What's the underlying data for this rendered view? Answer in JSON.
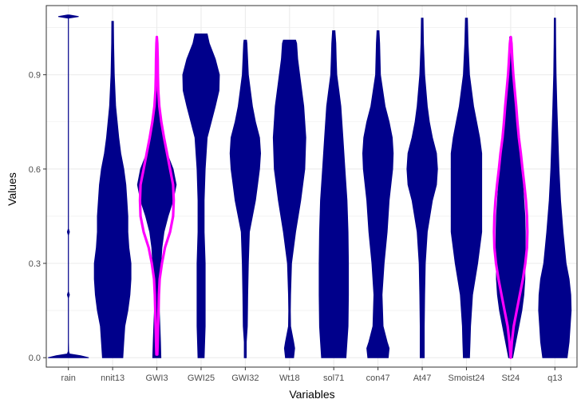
{
  "chart_data": {
    "type": "violin",
    "title": "",
    "xlabel": "Variables",
    "ylabel": "Values",
    "ylim": [
      -0.03,
      1.12
    ],
    "yticks": [
      0.0,
      0.3,
      0.6,
      0.9
    ],
    "ytick_labels": [
      "0.0",
      "0.3",
      "0.6",
      "0.9"
    ],
    "grid": true,
    "legend": "none",
    "fill_color": "#00008b",
    "highlight_color": "#ff00ff",
    "panel_border_color": "#333333",
    "grid_color": "#ebebeb",
    "categories": [
      "rain",
      "nnit13",
      "GWI3",
      "GWI25",
      "GWI32",
      "Wt18",
      "sol71",
      "con47",
      "At47",
      "Smoist24",
      "St24",
      "q13"
    ],
    "violins": [
      {
        "category": "rain",
        "profile": [
          [
            0.0,
            1.0
          ],
          [
            0.006,
            0.6
          ],
          [
            0.012,
            0.05
          ],
          [
            0.02,
            0.01
          ],
          [
            0.05,
            0.005
          ],
          [
            0.19,
            0.005
          ],
          [
            0.2,
            0.05
          ],
          [
            0.21,
            0.005
          ],
          [
            0.39,
            0.005
          ],
          [
            0.4,
            0.05
          ],
          [
            0.41,
            0.005
          ],
          [
            1.08,
            0.005
          ],
          [
            1.085,
            0.5
          ],
          [
            1.09,
            0.05
          ]
        ]
      },
      {
        "category": "nnit13",
        "profile": [
          [
            0.0,
            0.5
          ],
          [
            0.05,
            0.55
          ],
          [
            0.1,
            0.6
          ],
          [
            0.15,
            0.75
          ],
          [
            0.2,
            0.85
          ],
          [
            0.25,
            0.9
          ],
          [
            0.3,
            0.9
          ],
          [
            0.35,
            0.8
          ],
          [
            0.4,
            0.75
          ],
          [
            0.45,
            0.75
          ],
          [
            0.5,
            0.7
          ],
          [
            0.55,
            0.65
          ],
          [
            0.6,
            0.55
          ],
          [
            0.65,
            0.4
          ],
          [
            0.7,
            0.3
          ],
          [
            0.8,
            0.15
          ],
          [
            0.9,
            0.08
          ],
          [
            1.0,
            0.05
          ],
          [
            1.07,
            0.04
          ]
        ]
      },
      {
        "category": "GWI3",
        "profile": [
          [
            0.0,
            0.2
          ],
          [
            0.05,
            0.18
          ],
          [
            0.1,
            0.15
          ],
          [
            0.15,
            0.12
          ],
          [
            0.2,
            0.12
          ],
          [
            0.25,
            0.15
          ],
          [
            0.3,
            0.2
          ],
          [
            0.35,
            0.25
          ],
          [
            0.4,
            0.35
          ],
          [
            0.45,
            0.55
          ],
          [
            0.5,
            0.8
          ],
          [
            0.55,
            0.95
          ],
          [
            0.6,
            0.8
          ],
          [
            0.65,
            0.5
          ],
          [
            0.7,
            0.3
          ],
          [
            0.75,
            0.15
          ],
          [
            0.8,
            0.08
          ],
          [
            0.9,
            0.05
          ],
          [
            1.0,
            0.04
          ],
          [
            1.02,
            0.03
          ]
        ]
      },
      {
        "category": "GWI25",
        "profile": [
          [
            0.0,
            0.15
          ],
          [
            0.1,
            0.2
          ],
          [
            0.2,
            0.2
          ],
          [
            0.3,
            0.2
          ],
          [
            0.4,
            0.15
          ],
          [
            0.5,
            0.15
          ],
          [
            0.6,
            0.2
          ],
          [
            0.7,
            0.3
          ],
          [
            0.75,
            0.5
          ],
          [
            0.8,
            0.7
          ],
          [
            0.85,
            0.88
          ],
          [
            0.9,
            0.9
          ],
          [
            0.95,
            0.7
          ],
          [
            1.0,
            0.4
          ],
          [
            1.03,
            0.3
          ]
        ]
      },
      {
        "category": "GWI32",
        "profile": [
          [
            0.0,
            0.05
          ],
          [
            0.05,
            0.05
          ],
          [
            0.1,
            0.1
          ],
          [
            0.2,
            0.12
          ],
          [
            0.3,
            0.15
          ],
          [
            0.4,
            0.2
          ],
          [
            0.5,
            0.5
          ],
          [
            0.55,
            0.6
          ],
          [
            0.6,
            0.7
          ],
          [
            0.65,
            0.75
          ],
          [
            0.7,
            0.7
          ],
          [
            0.75,
            0.5
          ],
          [
            0.8,
            0.35
          ],
          [
            0.9,
            0.15
          ],
          [
            1.0,
            0.08
          ],
          [
            1.01,
            0.06
          ]
        ]
      },
      {
        "category": "Wt18",
        "profile": [
          [
            0.0,
            0.2
          ],
          [
            0.03,
            0.25
          ],
          [
            0.05,
            0.2
          ],
          [
            0.1,
            0.05
          ],
          [
            0.15,
            0.04
          ],
          [
            0.2,
            0.05
          ],
          [
            0.3,
            0.1
          ],
          [
            0.4,
            0.3
          ],
          [
            0.5,
            0.55
          ],
          [
            0.6,
            0.75
          ],
          [
            0.7,
            0.8
          ],
          [
            0.8,
            0.7
          ],
          [
            0.9,
            0.5
          ],
          [
            0.95,
            0.4
          ],
          [
            1.0,
            0.35
          ],
          [
            1.01,
            0.3
          ]
        ]
      },
      {
        "category": "sol71",
        "profile": [
          [
            0.0,
            0.6
          ],
          [
            0.05,
            0.65
          ],
          [
            0.1,
            0.7
          ],
          [
            0.2,
            0.72
          ],
          [
            0.3,
            0.72
          ],
          [
            0.4,
            0.7
          ],
          [
            0.5,
            0.65
          ],
          [
            0.6,
            0.55
          ],
          [
            0.7,
            0.45
          ],
          [
            0.8,
            0.35
          ],
          [
            0.85,
            0.25
          ],
          [
            0.9,
            0.15
          ],
          [
            0.95,
            0.12
          ],
          [
            1.0,
            0.1
          ],
          [
            1.04,
            0.06
          ]
        ]
      },
      {
        "category": "con47",
        "profile": [
          [
            0.0,
            0.5
          ],
          [
            0.03,
            0.55
          ],
          [
            0.05,
            0.45
          ],
          [
            0.1,
            0.25
          ],
          [
            0.2,
            0.2
          ],
          [
            0.3,
            0.3
          ],
          [
            0.4,
            0.45
          ],
          [
            0.5,
            0.55
          ],
          [
            0.6,
            0.72
          ],
          [
            0.65,
            0.75
          ],
          [
            0.7,
            0.7
          ],
          [
            0.75,
            0.55
          ],
          [
            0.8,
            0.35
          ],
          [
            0.9,
            0.12
          ],
          [
            1.0,
            0.08
          ],
          [
            1.04,
            0.05
          ]
        ]
      },
      {
        "category": "At47",
        "profile": [
          [
            0.0,
            0.1
          ],
          [
            0.05,
            0.1
          ],
          [
            0.1,
            0.1
          ],
          [
            0.2,
            0.12
          ],
          [
            0.3,
            0.15
          ],
          [
            0.4,
            0.25
          ],
          [
            0.5,
            0.5
          ],
          [
            0.55,
            0.7
          ],
          [
            0.6,
            0.75
          ],
          [
            0.65,
            0.7
          ],
          [
            0.7,
            0.5
          ],
          [
            0.75,
            0.35
          ],
          [
            0.8,
            0.25
          ],
          [
            0.9,
            0.12
          ],
          [
            1.0,
            0.06
          ],
          [
            1.08,
            0.04
          ]
        ]
      },
      {
        "category": "Smoist24",
        "profile": [
          [
            0.0,
            0.15
          ],
          [
            0.05,
            0.18
          ],
          [
            0.1,
            0.2
          ],
          [
            0.2,
            0.3
          ],
          [
            0.3,
            0.55
          ],
          [
            0.4,
            0.75
          ],
          [
            0.5,
            0.75
          ],
          [
            0.6,
            0.75
          ],
          [
            0.65,
            0.75
          ],
          [
            0.7,
            0.65
          ],
          [
            0.75,
            0.5
          ],
          [
            0.8,
            0.35
          ],
          [
            0.9,
            0.15
          ],
          [
            1.0,
            0.08
          ],
          [
            1.08,
            0.05
          ]
        ]
      },
      {
        "category": "St24",
        "profile": [
          [
            0.0,
            0.1
          ],
          [
            0.05,
            0.25
          ],
          [
            0.1,
            0.4
          ],
          [
            0.15,
            0.55
          ],
          [
            0.2,
            0.65
          ],
          [
            0.25,
            0.7
          ],
          [
            0.3,
            0.7
          ],
          [
            0.35,
            0.72
          ],
          [
            0.4,
            0.72
          ],
          [
            0.45,
            0.7
          ],
          [
            0.5,
            0.65
          ],
          [
            0.55,
            0.6
          ],
          [
            0.6,
            0.55
          ],
          [
            0.65,
            0.45
          ],
          [
            0.7,
            0.35
          ],
          [
            0.8,
            0.25
          ],
          [
            0.9,
            0.12
          ],
          [
            1.0,
            0.06
          ],
          [
            1.02,
            0.05
          ]
        ]
      },
      {
        "category": "q13",
        "profile": [
          [
            0.0,
            0.6
          ],
          [
            0.05,
            0.7
          ],
          [
            0.1,
            0.75
          ],
          [
            0.15,
            0.8
          ],
          [
            0.2,
            0.78
          ],
          [
            0.25,
            0.7
          ],
          [
            0.3,
            0.55
          ],
          [
            0.4,
            0.4
          ],
          [
            0.5,
            0.28
          ],
          [
            0.6,
            0.2
          ],
          [
            0.7,
            0.15
          ],
          [
            0.8,
            0.1
          ],
          [
            0.9,
            0.06
          ],
          [
            1.0,
            0.04
          ],
          [
            1.08,
            0.03
          ]
        ]
      }
    ],
    "highlight_outlines": [
      {
        "category": "GWI3",
        "profile": [
          [
            0.01,
            0.02
          ],
          [
            0.05,
            0.04
          ],
          [
            0.1,
            0.06
          ],
          [
            0.15,
            0.08
          ],
          [
            0.2,
            0.1
          ],
          [
            0.25,
            0.14
          ],
          [
            0.3,
            0.25
          ],
          [
            0.35,
            0.4
          ],
          [
            0.4,
            0.65
          ],
          [
            0.45,
            0.8
          ],
          [
            0.5,
            0.83
          ],
          [
            0.55,
            0.8
          ],
          [
            0.6,
            0.65
          ],
          [
            0.65,
            0.5
          ],
          [
            0.7,
            0.35
          ],
          [
            0.75,
            0.22
          ],
          [
            0.8,
            0.12
          ],
          [
            0.85,
            0.07
          ],
          [
            0.9,
            0.05
          ],
          [
            0.95,
            0.04
          ],
          [
            1.0,
            0.02
          ],
          [
            1.02,
            0.0
          ]
        ]
      },
      {
        "category": "St24",
        "profile": [
          [
            0.0,
            0.0
          ],
          [
            0.05,
            0.06
          ],
          [
            0.1,
            0.15
          ],
          [
            0.15,
            0.3
          ],
          [
            0.2,
            0.45
          ],
          [
            0.25,
            0.6
          ],
          [
            0.3,
            0.72
          ],
          [
            0.35,
            0.8
          ],
          [
            0.4,
            0.82
          ],
          [
            0.45,
            0.8
          ],
          [
            0.5,
            0.75
          ],
          [
            0.55,
            0.67
          ],
          [
            0.6,
            0.58
          ],
          [
            0.65,
            0.5
          ],
          [
            0.7,
            0.4
          ],
          [
            0.75,
            0.33
          ],
          [
            0.8,
            0.27
          ],
          [
            0.85,
            0.2
          ],
          [
            0.9,
            0.13
          ],
          [
            0.95,
            0.08
          ],
          [
            1.0,
            0.04
          ],
          [
            1.02,
            0.0
          ]
        ]
      }
    ]
  }
}
